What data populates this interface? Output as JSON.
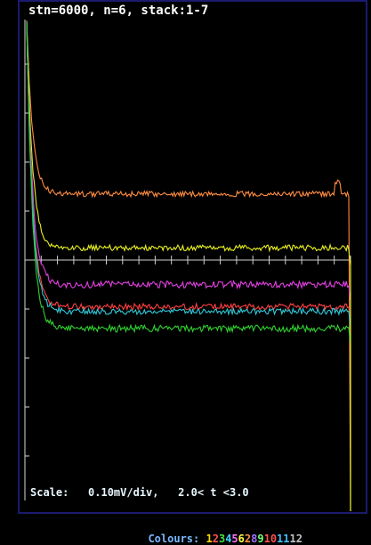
{
  "header": {
    "title": "stn=6000, n=6, stack:1-7"
  },
  "footer": {
    "scale_text": "Scale:   0.10mV/div,   2.0< t <3.0",
    "colours_label": "Colours: ",
    "colours_digits": [
      {
        "t": "1",
        "color": "#ffd700"
      },
      {
        "t": "2",
        "color": "#ff5050"
      },
      {
        "t": "3",
        "color": "#40e040"
      },
      {
        "t": "4",
        "color": "#40d0ff"
      },
      {
        "t": "5",
        "color": "#ff70ff"
      },
      {
        "t": "6",
        "color": "#ffff40"
      },
      {
        "t": "2",
        "color": "#ff9040"
      },
      {
        "t": "8",
        "color": "#a070ff"
      },
      {
        "t": "9",
        "color": "#70ff70"
      },
      {
        "t": "10",
        "color": "#ff5050"
      },
      {
        "t": "11",
        "color": "#40c0ff"
      },
      {
        "t": "12",
        "color": "#c0c0c0"
      }
    ]
  },
  "chart_data": {
    "type": "line",
    "x_range": [
      2.0,
      3.0
    ],
    "y_unit": "mV",
    "y_scale_per_div": 0.1,
    "series": [
      {
        "color": "#ff8c40",
        "level": 1.35,
        "noise": 0.055,
        "end_spike": true
      },
      {
        "color": "#e6f020",
        "level": 0.25,
        "noise": 0.06,
        "end_spike": false
      },
      {
        "color": "#e040e0",
        "level": -0.5,
        "noise": 0.07,
        "end_spike": false
      },
      {
        "color": "#ff4040",
        "level": -0.95,
        "noise": 0.06,
        "end_spike": false
      },
      {
        "color": "#30c8d8",
        "level": -1.05,
        "noise": 0.06,
        "end_spike": false
      },
      {
        "color": "#30d030",
        "level": -1.4,
        "noise": 0.07,
        "end_spike": false
      }
    ]
  }
}
